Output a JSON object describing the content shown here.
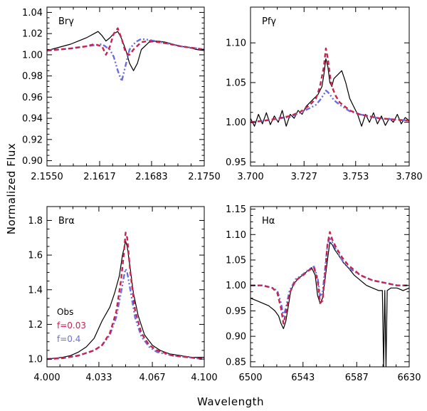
{
  "figure": {
    "ylabel": "Normalized Flux",
    "xlabel": "Wavelength",
    "colors": {
      "obs": "#000000",
      "f003": "#c8234f",
      "f04": "#6a6ee0"
    },
    "legend": [
      {
        "key": "obs",
        "label": "Obs"
      },
      {
        "key": "f003",
        "label": "f=0.03"
      },
      {
        "key": "f04",
        "label": "f=0.4"
      }
    ]
  },
  "chart_data": [
    {
      "type": "line",
      "title": "Brγ",
      "xlim": [
        2.155,
        2.175
      ],
      "ylim": [
        0.895,
        1.045
      ],
      "xticks": [
        "2.1550",
        "2.1617",
        "2.1683",
        "2.1750"
      ],
      "xtick_values": [
        2.155,
        2.1617,
        2.1683,
        2.175
      ],
      "yticks": [
        "0.90",
        "0.92",
        "0.94",
        "0.96",
        "0.98",
        "1.00",
        "1.02",
        "1.04"
      ],
      "ytick_values": [
        0.9,
        0.92,
        0.94,
        0.96,
        0.98,
        1.0,
        1.02,
        1.04
      ],
      "series": [
        {
          "name": "Obs",
          "key": "obs",
          "x": [
            2.155,
            2.156,
            2.157,
            2.158,
            2.159,
            2.16,
            2.161,
            2.1615,
            2.162,
            2.1625,
            2.163,
            2.1635,
            2.164,
            2.1645,
            2.165,
            2.1655,
            2.166,
            2.1665,
            2.167,
            2.168,
            2.169,
            2.17,
            2.171,
            2.172,
            2.173,
            2.174,
            2.175
          ],
          "y": [
            1.004,
            1.006,
            1.008,
            1.01,
            1.013,
            1.016,
            1.02,
            1.022,
            1.018,
            1.013,
            1.016,
            1.02,
            1.022,
            1.015,
            1.005,
            0.992,
            0.985,
            0.992,
            1.005,
            1.012,
            1.013,
            1.012,
            1.01,
            1.008,
            1.007,
            1.005,
            1.004
          ]
        },
        {
          "name": "f=0.03",
          "key": "f003",
          "x": [
            2.155,
            2.158,
            2.16,
            2.161,
            2.162,
            2.1625,
            2.163,
            2.1635,
            2.164,
            2.1645,
            2.165,
            2.1655,
            2.166,
            2.167,
            2.168,
            2.17,
            2.172,
            2.175
          ],
          "y": [
            1.004,
            1.006,
            1.008,
            1.01,
            1.008,
            1.0,
            1.008,
            1.02,
            1.025,
            1.015,
            1.002,
            1.0,
            1.005,
            1.012,
            1.013,
            1.011,
            1.008,
            1.005
          ]
        },
        {
          "name": "f=0.4",
          "key": "f04",
          "x": [
            2.155,
            2.158,
            2.16,
            2.161,
            2.162,
            2.163,
            2.1635,
            2.164,
            2.1645,
            2.165,
            2.1655,
            2.166,
            2.1665,
            2.167,
            2.168,
            2.17,
            2.172,
            2.175
          ],
          "y": [
            1.004,
            1.006,
            1.008,
            1.009,
            1.01,
            1.005,
            0.998,
            0.985,
            0.975,
            0.99,
            1.005,
            1.01,
            1.013,
            1.015,
            1.014,
            1.011,
            1.008,
            1.005
          ]
        }
      ]
    },
    {
      "type": "line",
      "title": "Pfγ",
      "xlim": [
        3.7,
        3.78
      ],
      "ylim": [
        0.945,
        1.145
      ],
      "xticks": [
        "3.700",
        "3.727",
        "3.753",
        "3.780"
      ],
      "xtick_values": [
        3.7,
        3.727,
        3.753,
        3.78
      ],
      "yticks": [
        "0.95",
        "1.00",
        "1.05",
        "1.10"
      ],
      "ytick_values": [
        0.95,
        1.0,
        1.05,
        1.1
      ],
      "series": [
        {
          "name": "Obs",
          "key": "obs",
          "x": [
            3.7,
            3.702,
            3.704,
            3.706,
            3.708,
            3.71,
            3.712,
            3.714,
            3.716,
            3.718,
            3.72,
            3.722,
            3.724,
            3.726,
            3.728,
            3.73,
            3.732,
            3.734,
            3.736,
            3.737,
            3.738,
            3.739,
            3.74,
            3.741,
            3.742,
            3.744,
            3.746,
            3.748,
            3.75,
            3.752,
            3.754,
            3.756,
            3.758,
            3.76,
            3.762,
            3.764,
            3.766,
            3.768,
            3.77,
            3.772,
            3.774,
            3.776,
            3.778,
            3.78
          ],
          "y": [
            1.005,
            0.995,
            1.01,
            0.998,
            1.012,
            0.997,
            1.008,
            1.0,
            1.015,
            0.995,
            1.01,
            1.005,
            1.015,
            1.01,
            1.02,
            1.025,
            1.03,
            1.035,
            1.045,
            1.06,
            1.08,
            1.07,
            1.05,
            1.045,
            1.055,
            1.06,
            1.065,
            1.05,
            1.03,
            1.02,
            1.01,
            0.995,
            1.01,
            1.0,
            1.012,
            0.998,
            1.008,
            0.996,
            1.005,
            1.0,
            1.01,
            0.998,
            1.006,
            1.002
          ]
        },
        {
          "name": "f=0.03",
          "key": "f003",
          "x": [
            3.7,
            3.71,
            3.72,
            3.725,
            3.73,
            3.733,
            3.735,
            3.737,
            3.738,
            3.739,
            3.74,
            3.741,
            3.743,
            3.745,
            3.75,
            3.755,
            3.765,
            3.78
          ],
          "y": [
            1.0,
            1.003,
            1.008,
            1.013,
            1.022,
            1.03,
            1.045,
            1.07,
            1.093,
            1.08,
            1.06,
            1.045,
            1.033,
            1.025,
            1.015,
            1.01,
            1.005,
            1.002
          ]
        },
        {
          "name": "f=0.4",
          "key": "f04",
          "x": [
            3.7,
            3.71,
            3.72,
            3.725,
            3.73,
            3.733,
            3.735,
            3.737,
            3.738,
            3.739,
            3.74,
            3.742,
            3.745,
            3.75,
            3.755,
            3.765,
            3.78
          ],
          "y": [
            1.0,
            1.003,
            1.007,
            1.012,
            1.018,
            1.022,
            1.028,
            1.035,
            1.04,
            1.038,
            1.035,
            1.028,
            1.022,
            1.014,
            1.01,
            1.005,
            1.002
          ]
        }
      ]
    },
    {
      "type": "line",
      "title": "Brα",
      "xlim": [
        4.0,
        4.1
      ],
      "ylim": [
        0.955,
        1.88
      ],
      "xticks": [
        "4.000",
        "4.033",
        "4.067",
        "4.100"
      ],
      "xtick_values": [
        4.0,
        4.033,
        4.067,
        4.1
      ],
      "yticks": [
        "1.0",
        "1.2",
        "1.4",
        "1.6",
        "1.8"
      ],
      "ytick_values": [
        1.0,
        1.2,
        1.4,
        1.6,
        1.8
      ],
      "series": [
        {
          "name": "Obs",
          "key": "obs",
          "x": [
            4.0,
            4.005,
            4.01,
            4.015,
            4.02,
            4.025,
            4.03,
            4.035,
            4.04,
            4.043,
            4.046,
            4.048,
            4.05,
            4.051,
            4.053,
            4.055,
            4.058,
            4.062,
            4.067,
            4.072,
            4.078,
            4.085,
            4.092,
            4.1
          ],
          "y": [
            1.0,
            1.005,
            1.01,
            1.02,
            1.04,
            1.07,
            1.12,
            1.22,
            1.3,
            1.38,
            1.48,
            1.6,
            1.68,
            1.65,
            1.52,
            1.38,
            1.25,
            1.14,
            1.08,
            1.05,
            1.03,
            1.02,
            1.01,
            1.01
          ]
        },
        {
          "name": "f=0.03",
          "key": "f003",
          "x": [
            4.0,
            4.01,
            4.02,
            4.03,
            4.035,
            4.04,
            4.044,
            4.047,
            4.049,
            4.05,
            4.051,
            4.053,
            4.056,
            4.06,
            4.065,
            4.07,
            4.08,
            4.09,
            4.1
          ],
          "y": [
            1.0,
            1.005,
            1.02,
            1.05,
            1.08,
            1.15,
            1.27,
            1.45,
            1.62,
            1.73,
            1.7,
            1.5,
            1.28,
            1.15,
            1.08,
            1.05,
            1.02,
            1.01,
            1.0
          ]
        },
        {
          "name": "f=0.4",
          "key": "f04",
          "x": [
            4.0,
            4.01,
            4.02,
            4.03,
            4.035,
            4.04,
            4.044,
            4.047,
            4.049,
            4.05,
            4.051,
            4.053,
            4.056,
            4.06,
            4.065,
            4.07,
            4.08,
            4.09,
            4.1
          ],
          "y": [
            1.0,
            1.005,
            1.02,
            1.05,
            1.08,
            1.14,
            1.24,
            1.38,
            1.48,
            1.52,
            1.5,
            1.4,
            1.24,
            1.13,
            1.07,
            1.04,
            1.02,
            1.01,
            1.0
          ]
        }
      ]
    },
    {
      "type": "line",
      "title": "Hα",
      "xlim": [
        6500,
        6630
      ],
      "ylim": [
        0.84,
        1.155
      ],
      "xticks": [
        "6500",
        "6543",
        "6587",
        "6630"
      ],
      "xtick_values": [
        6500,
        6543,
        6587,
        6630
      ],
      "yticks": [
        "0.85",
        "0.90",
        "0.95",
        "1.00",
        "1.05",
        "1.10",
        "1.15"
      ],
      "ytick_values": [
        0.85,
        0.9,
        0.95,
        1.0,
        1.05,
        1.1,
        1.15
      ],
      "series": [
        {
          "name": "Obs",
          "key": "obs",
          "x": [
            6500,
            6505,
            6510,
            6515,
            6520,
            6523,
            6525,
            6527,
            6529,
            6531,
            6533,
            6536,
            6540,
            6545,
            6550,
            6553,
            6555,
            6557,
            6559,
            6561,
            6563,
            6565,
            6567,
            6569,
            6572,
            6576,
            6580,
            6585,
            6590,
            6595,
            6600,
            6605,
            6608,
            6609,
            6610,
            6611,
            6612,
            6615,
            6620,
            6625,
            6630
          ],
          "y": [
            0.975,
            0.97,
            0.965,
            0.96,
            0.95,
            0.94,
            0.925,
            0.915,
            0.93,
            0.96,
            0.99,
            1.005,
            1.015,
            1.025,
            1.035,
            1.02,
            0.98,
            0.965,
            0.975,
            1.01,
            1.05,
            1.085,
            1.08,
            1.07,
            1.06,
            1.045,
            1.035,
            1.02,
            1.01,
            1.0,
            0.995,
            0.99,
            0.99,
            0.84,
            0.99,
            0.84,
            0.99,
            0.995,
            0.995,
            0.99,
            0.995
          ]
        },
        {
          "name": "f=0.03",
          "key": "f003",
          "x": [
            6500,
            6510,
            6518,
            6522,
            6525,
            6527,
            6529,
            6532,
            6537,
            6543,
            6548,
            6552,
            6555,
            6557,
            6559,
            6561,
            6563,
            6565,
            6567,
            6570,
            6575,
            6580,
            6590,
            6600,
            6610,
            6620,
            6630
          ],
          "y": [
            1.0,
            1.0,
            0.995,
            0.985,
            0.955,
            0.925,
            0.945,
            0.985,
            1.01,
            1.02,
            1.03,
            1.035,
            1.01,
            0.965,
            0.97,
            1.02,
            1.08,
            1.105,
            1.09,
            1.075,
            1.055,
            1.04,
            1.02,
            1.01,
            1.005,
            1.0,
            1.0
          ]
        },
        {
          "name": "f=0.4",
          "key": "f04",
          "x": [
            6500,
            6510,
            6518,
            6522,
            6525,
            6527,
            6529,
            6532,
            6537,
            6543,
            6548,
            6552,
            6555,
            6557,
            6559,
            6561,
            6563,
            6565,
            6567,
            6570,
            6575,
            6580,
            6590,
            6600,
            6610,
            6620,
            6630
          ],
          "y": [
            1.0,
            1.0,
            0.995,
            0.99,
            0.965,
            0.94,
            0.955,
            0.99,
            1.012,
            1.022,
            1.032,
            1.037,
            1.015,
            0.98,
            0.985,
            1.03,
            1.08,
            1.095,
            1.085,
            1.07,
            1.05,
            1.035,
            1.02,
            1.01,
            1.005,
            1.0,
            1.0
          ]
        }
      ]
    }
  ]
}
